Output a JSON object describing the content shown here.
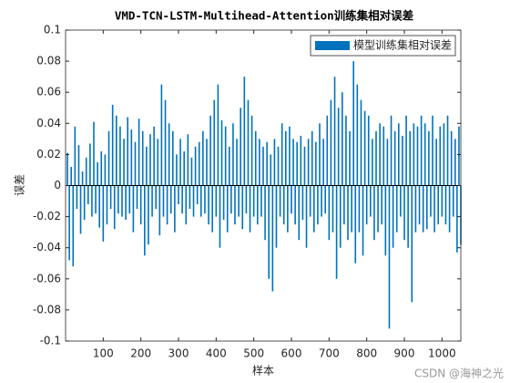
{
  "chart_data": {
    "type": "bar",
    "title": "VMD-TCN-LSTM-Multihead-Attention训练集相对误差",
    "x_label": "样本",
    "y_label": "误差",
    "watermark": "CSDN @海神之光",
    "xlim": [
      0,
      1050
    ],
    "xticks": [
      100,
      200,
      300,
      400,
      500,
      600,
      700,
      800,
      900,
      1000
    ],
    "ylim": [
      -0.1,
      0.1
    ],
    "yticks": [
      -0.1,
      -0.08,
      -0.06,
      -0.04,
      -0.02,
      0,
      0.02,
      0.04,
      0.06,
      0.08,
      0.1
    ],
    "legend": "upper right",
    "x": [
      5,
      10,
      15,
      20,
      25,
      30,
      35,
      40,
      45,
      50,
      55,
      60,
      65,
      70,
      75,
      80,
      85,
      90,
      95,
      100,
      105,
      110,
      115,
      120,
      125,
      130,
      135,
      140,
      145,
      150,
      155,
      160,
      165,
      170,
      175,
      180,
      185,
      190,
      195,
      200,
      205,
      210,
      215,
      220,
      225,
      230,
      235,
      240,
      245,
      250,
      255,
      260,
      265,
      270,
      275,
      280,
      285,
      290,
      295,
      300,
      305,
      310,
      315,
      320,
      325,
      330,
      335,
      340,
      345,
      350,
      355,
      360,
      365,
      370,
      375,
      380,
      385,
      390,
      395,
      400,
      405,
      410,
      415,
      420,
      425,
      430,
      435,
      440,
      445,
      450,
      455,
      460,
      465,
      470,
      475,
      480,
      485,
      490,
      495,
      500,
      505,
      510,
      515,
      520,
      525,
      530,
      535,
      540,
      545,
      550,
      555,
      560,
      565,
      570,
      575,
      580,
      585,
      590,
      595,
      600,
      605,
      610,
      615,
      620,
      625,
      630,
      635,
      640,
      645,
      650,
      655,
      660,
      665,
      670,
      675,
      680,
      685,
      690,
      695,
      700,
      705,
      710,
      715,
      720,
      725,
      730,
      735,
      740,
      745,
      750,
      755,
      760,
      765,
      770,
      775,
      780,
      785,
      790,
      795,
      800,
      805,
      810,
      815,
      820,
      825,
      830,
      835,
      840,
      845,
      850,
      855,
      860,
      865,
      870,
      875,
      880,
      885,
      890,
      895,
      900,
      905,
      910,
      915,
      920,
      925,
      930,
      935,
      940,
      945,
      950,
      955,
      960,
      965,
      970,
      975,
      980,
      985,
      990,
      995,
      1000,
      1005,
      1010,
      1015,
      1020,
      1025,
      1030,
      1035,
      1040,
      1045,
      1050
    ],
    "series": [
      {
        "name": "模型训练集相对误差",
        "color": "#0072bd",
        "values": [
          0.021,
          -0.048,
          0.012,
          -0.052,
          0.038,
          -0.015,
          0.026,
          -0.031,
          0.009,
          -0.022,
          0.018,
          -0.012,
          0.027,
          -0.02,
          0.041,
          -0.018,
          0.015,
          -0.027,
          0.022,
          -0.036,
          0.02,
          -0.025,
          0.035,
          -0.015,
          0.052,
          -0.028,
          0.045,
          -0.018,
          0.038,
          -0.02,
          0.03,
          -0.022,
          0.044,
          -0.018,
          0.036,
          -0.03,
          0.028,
          -0.015,
          0.043,
          -0.025,
          0.035,
          -0.045,
          0.025,
          -0.038,
          0.033,
          -0.02,
          0.038,
          -0.015,
          0.03,
          -0.032,
          0.065,
          -0.02,
          0.055,
          -0.025,
          0.04,
          -0.018,
          0.035,
          -0.03,
          0.02,
          -0.012,
          0.03,
          -0.018,
          0.022,
          -0.025,
          0.033,
          -0.015,
          0.018,
          -0.02,
          0.025,
          -0.012,
          0.028,
          -0.02,
          0.035,
          -0.018,
          0.03,
          -0.025,
          0.045,
          -0.03,
          0.055,
          -0.02,
          0.065,
          -0.04,
          0.042,
          -0.022,
          0.038,
          -0.03,
          0.025,
          -0.018,
          0.04,
          -0.025,
          0.03,
          -0.02,
          0.05,
          -0.028,
          0.07,
          -0.018,
          0.055,
          -0.03,
          0.045,
          -0.02,
          0.035,
          -0.025,
          0.03,
          -0.02,
          0.025,
          -0.035,
          0.028,
          -0.06,
          0.02,
          -0.068,
          0.03,
          -0.04,
          0.025,
          -0.02,
          0.04,
          -0.025,
          0.035,
          -0.03,
          0.038,
          -0.018,
          0.03,
          -0.025,
          0.028,
          -0.035,
          0.032,
          -0.022,
          0.025,
          -0.04,
          0.03,
          -0.02,
          0.035,
          -0.03,
          0.028,
          -0.025,
          0.04,
          -0.02,
          0.03,
          -0.018,
          0.045,
          -0.035,
          0.055,
          -0.03,
          0.07,
          -0.06,
          0.05,
          -0.04,
          0.06,
          -0.025,
          0.045,
          -0.035,
          0.035,
          -0.03,
          0.08,
          -0.05,
          0.065,
          -0.03,
          0.055,
          -0.045,
          0.048,
          -0.025,
          0.045,
          -0.02,
          0.03,
          -0.035,
          0.035,
          -0.03,
          0.04,
          -0.025,
          0.038,
          -0.045,
          0.03,
          -0.092,
          0.045,
          -0.04,
          0.035,
          -0.03,
          0.04,
          -0.02,
          0.032,
          -0.035,
          0.045,
          -0.04,
          0.035,
          -0.075,
          0.04,
          -0.03,
          0.038,
          -0.025,
          0.045,
          -0.03,
          0.04,
          -0.028,
          0.035,
          -0.02,
          0.045,
          -0.03,
          0.03,
          -0.025,
          0.038,
          -0.02,
          0.04,
          -0.025,
          0.045,
          -0.03,
          0.035,
          -0.02,
          0.03,
          -0.043,
          0.038,
          -0.038
        ]
      }
    ]
  }
}
